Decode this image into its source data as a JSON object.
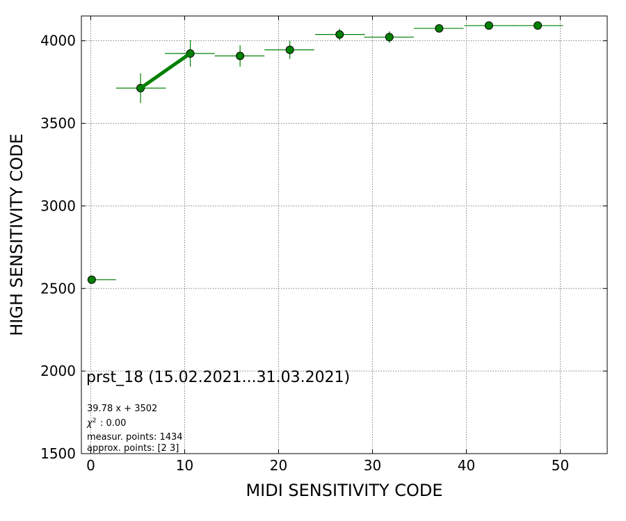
{
  "chart_data": {
    "type": "scatter",
    "xlabel": "MIDI SENSITIVITY CODE",
    "ylabel": "HIGH SENSITIVITY CODE",
    "xlim": [
      -1,
      55
    ],
    "ylim": [
      1500,
      4150
    ],
    "x_ticks": [
      0,
      10,
      20,
      30,
      40,
      50
    ],
    "y_ticks": [
      1500,
      2000,
      2500,
      3000,
      3500,
      4000
    ],
    "grid": true,
    "grid_style": "dotted",
    "marker_color": "#008000",
    "line_color": "#008000",
    "points": [
      {
        "x": 0.1,
        "y": 2553,
        "xerr_lo": 0.1,
        "xerr_hi": 2.6,
        "yerr": 0
      },
      {
        "x": 5.3,
        "y": 3713,
        "xerr_lo": 2.6,
        "xerr_hi": 2.7,
        "yerr": 90
      },
      {
        "x": 10.6,
        "y": 3923,
        "xerr_lo": 2.7,
        "xerr_hi": 2.6,
        "yerr": 80
      },
      {
        "x": 15.9,
        "y": 3908,
        "xerr_lo": 2.7,
        "xerr_hi": 2.6,
        "yerr": 65
      },
      {
        "x": 21.2,
        "y": 3945,
        "xerr_lo": 2.7,
        "xerr_hi": 2.6,
        "yerr": 55
      },
      {
        "x": 26.5,
        "y": 4038,
        "xerr_lo": 2.6,
        "xerr_hi": 2.7,
        "yerr": 35
      },
      {
        "x": 31.8,
        "y": 4022,
        "xerr_lo": 2.7,
        "xerr_hi": 2.6,
        "yerr": 35
      },
      {
        "x": 37.1,
        "y": 4075,
        "xerr_lo": 2.7,
        "xerr_hi": 2.6,
        "yerr": 0
      },
      {
        "x": 42.4,
        "y": 4092,
        "xerr_lo": 2.6,
        "xerr_hi": 2.7,
        "yerr": 0
      },
      {
        "x": 47.6,
        "y": 4092,
        "xerr_lo": 2.6,
        "xerr_hi": 2.7,
        "yerr": 0
      }
    ],
    "fit": {
      "slope": 39.78,
      "intercept": 3502,
      "x_range": [
        5.3,
        10.6
      ]
    },
    "annotations": {
      "run_label": "prst_18 (15.02.2021...31.03.2021)",
      "fit_text": "39.78 x + 3502",
      "chi2_text": ": 0.00",
      "measur_text": "measur. points: 1434",
      "approx_text": "approx. points: [2 3]"
    }
  }
}
